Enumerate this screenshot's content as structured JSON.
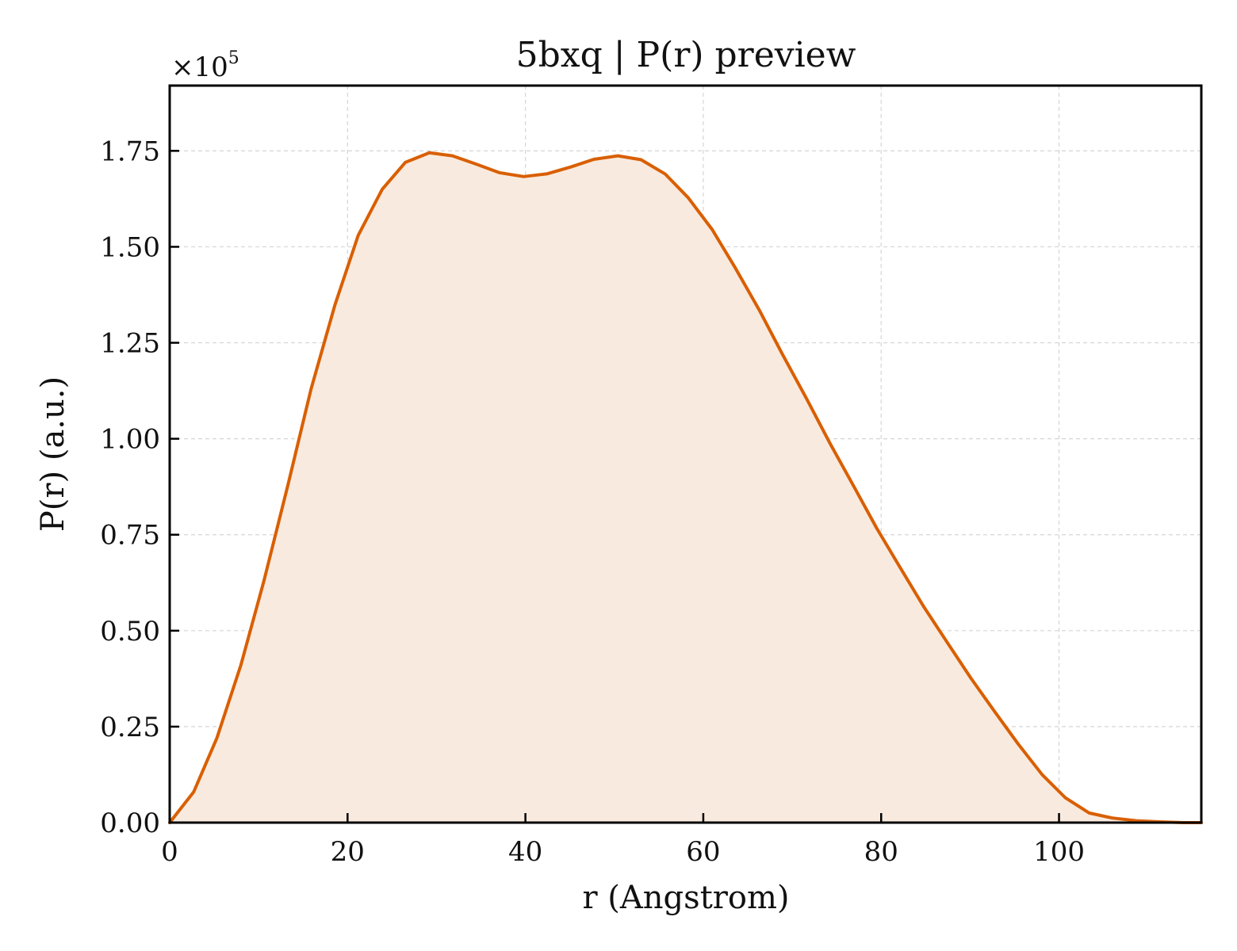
{
  "chart_data": {
    "type": "area",
    "title": "5bxq | P(r) preview",
    "xlabel": "r (Angstrom)",
    "ylabel": "P(r) (a.u.)",
    "y_multiplier_label": "×10",
    "y_multiplier_exponent": "5",
    "xlim": [
      0,
      116
    ],
    "ylim": [
      0,
      1.92
    ],
    "xticks": [
      0,
      20,
      40,
      60,
      80,
      100
    ],
    "xtick_labels": [
      "0",
      "20",
      "40",
      "60",
      "80",
      "100"
    ],
    "yticks": [
      0,
      0.25,
      0.5,
      0.75,
      1.0,
      1.25,
      1.5,
      1.75
    ],
    "ytick_labels": [
      "0.00",
      "0.25",
      "0.50",
      "0.75",
      "1.00",
      "1.25",
      "1.50",
      "1.75"
    ],
    "grid": true,
    "line_color": "#d95f02",
    "fill_color": "#f9eadf",
    "series": [
      {
        "x": [
          0,
          2.7,
          5.3,
          8.0,
          10.6,
          13.3,
          15.9,
          18.6,
          21.2,
          23.9,
          26.5,
          29.2,
          31.8,
          34.5,
          37.1,
          39.8,
          42.4,
          45.1,
          47.7,
          50.4,
          53.0,
          55.7,
          58.3,
          61.0,
          63.6,
          66.3,
          68.9,
          71.6,
          74.2,
          76.9,
          79.5,
          82.2,
          84.8,
          87.5,
          90.1,
          92.8,
          95.4,
          98.1,
          100.7,
          103.4,
          106.0,
          108.7,
          111.3,
          114.0,
          116.0
        ],
        "y": [
          0.0,
          0.08,
          0.22,
          0.41,
          0.63,
          0.88,
          1.13,
          1.35,
          1.53,
          1.65,
          1.72,
          1.745,
          1.737,
          1.715,
          1.693,
          1.683,
          1.69,
          1.708,
          1.728,
          1.737,
          1.727,
          1.69,
          1.628,
          1.545,
          1.445,
          1.335,
          1.22,
          1.105,
          0.99,
          0.877,
          0.767,
          0.662,
          0.562,
          0.467,
          0.376,
          0.288,
          0.205,
          0.125,
          0.065,
          0.025,
          0.012,
          0.005,
          0.002,
          0.0,
          0.0
        ]
      }
    ]
  }
}
